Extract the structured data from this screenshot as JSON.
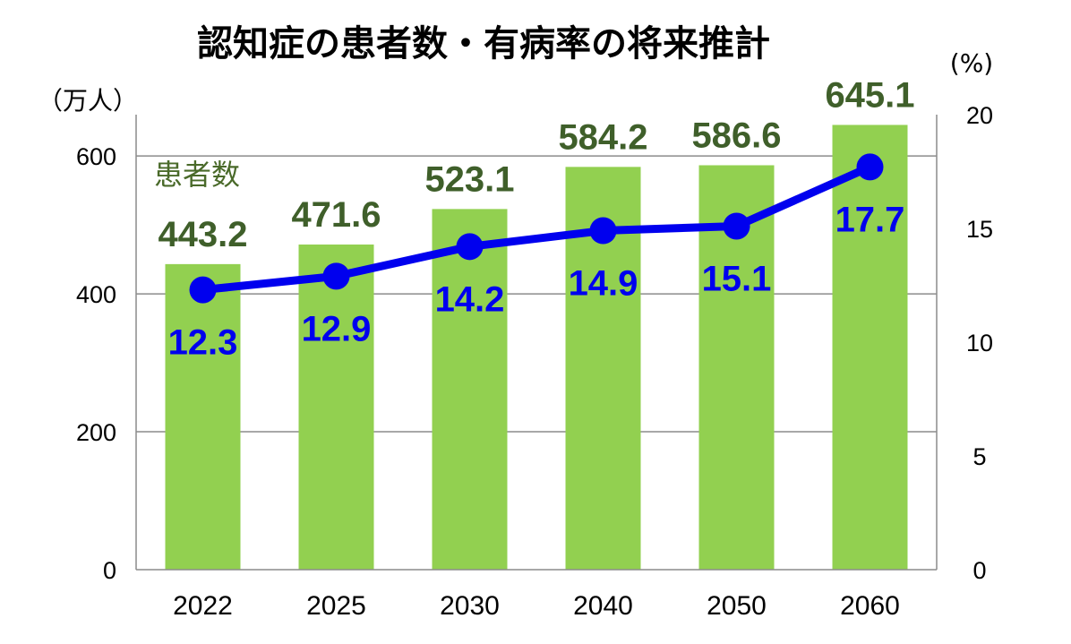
{
  "chart_data": {
    "type": "bar",
    "title": "認知症の患者数・有病率の将来推計",
    "y_unit_left": "（万人）",
    "y_unit_right": "(%)",
    "categories": [
      "2022",
      "2025",
      "2030",
      "2040",
      "2050",
      "2060"
    ],
    "series": [
      {
        "name": "患者数",
        "type": "bar",
        "axis": "left",
        "values": [
          443.2,
          471.6,
          523.1,
          584.2,
          586.6,
          645.1
        ],
        "labels": [
          "443.2",
          "471.6",
          "523.1",
          "584.2",
          "586.6",
          "645.1"
        ],
        "color": "#92d050"
      },
      {
        "type": "line",
        "axis": "right",
        "values": [
          12.3,
          12.9,
          14.2,
          14.9,
          15.1,
          17.7
        ],
        "labels": [
          "12.3",
          "12.9",
          "14.2",
          "14.9",
          "15.1",
          "17.7"
        ],
        "color": "#0000ee"
      }
    ],
    "ylim_left": [
      0,
      660
    ],
    "yticks_left": [
      "0",
      "200",
      "400",
      "600"
    ],
    "ylim_right": [
      0,
      20
    ],
    "yticks_right": [
      "0",
      "5",
      "10",
      "15",
      "20"
    ],
    "grid": true,
    "legend": "none"
  }
}
